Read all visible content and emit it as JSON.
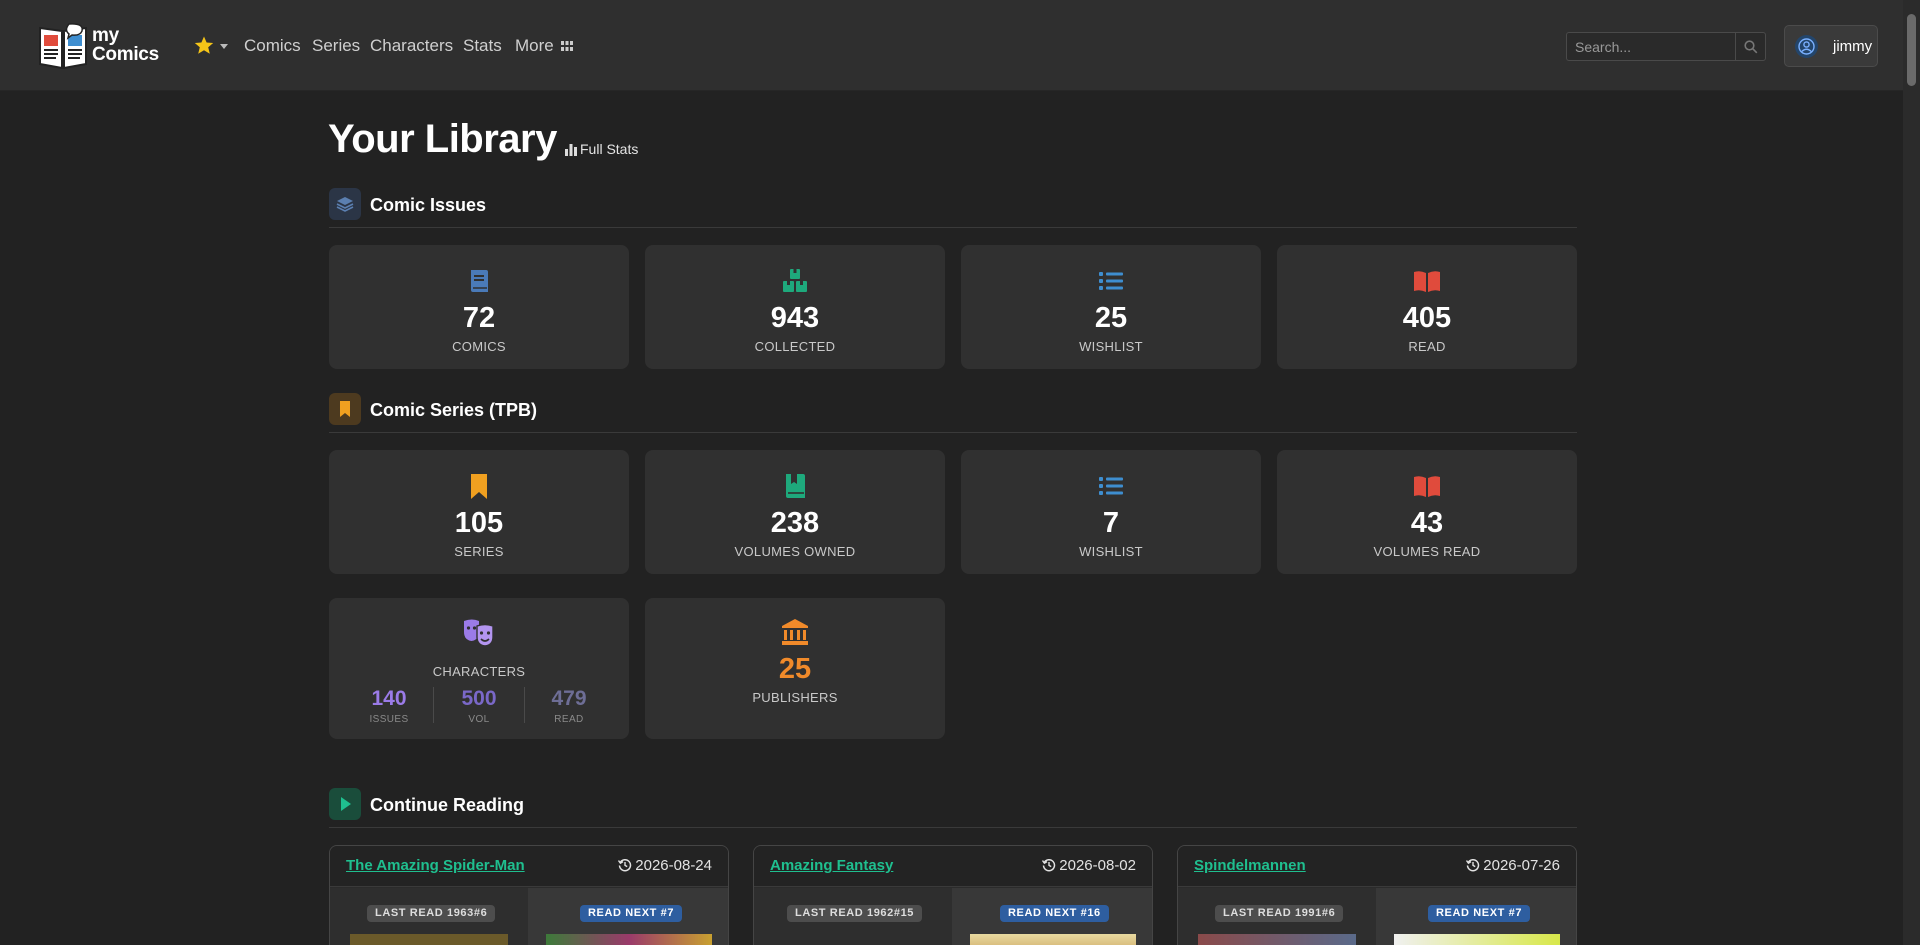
{
  "navbar": {
    "logo_line1": "my",
    "logo_line2": "Comics",
    "links": [
      "Comics",
      "Series",
      "Characters",
      "Stats",
      "More"
    ],
    "search_placeholder": "Search...",
    "user": "jimmy",
    "colors": {
      "star": "#f5c518",
      "bg": "#2f2f2f"
    },
    "icons": [
      "star-icon",
      "grid-icon",
      "search-icon",
      "user-circle-icon"
    ]
  },
  "page": {
    "title": "Your Library",
    "full_stats_label": "Full Stats"
  },
  "issues_section": {
    "title": "Comic Issues",
    "cards": [
      {
        "value": "72",
        "label": "COMICS",
        "icon": "book-icon",
        "color": "#4a7ab8"
      },
      {
        "value": "943",
        "label": "COLLECTED",
        "icon": "boxes-icon",
        "color": "#1ea97c"
      },
      {
        "value": "25",
        "label": "WISHLIST",
        "icon": "list-icon",
        "color": "#3e8ed0"
      },
      {
        "value": "405",
        "label": "READ",
        "icon": "open-book-icon",
        "color": "#e04b3c"
      }
    ]
  },
  "series_section": {
    "title": "Comic Series (TPB)",
    "cards": [
      {
        "value": "105",
        "label": "SERIES",
        "icon": "bookmark-icon",
        "color": "#f0a020"
      },
      {
        "value": "238",
        "label": "VOLUMES OWNED",
        "icon": "book-bookmark-icon",
        "color": "#1ea97c"
      },
      {
        "value": "7",
        "label": "WISHLIST",
        "icon": "list-icon",
        "color": "#3e8ed0"
      },
      {
        "value": "43",
        "label": "VOLUMES READ",
        "icon": "open-book-icon",
        "color": "#e04b3c"
      }
    ]
  },
  "characters": {
    "label": "CHARACTERS",
    "icon": "masks-icon",
    "color": "#9b7be8",
    "stats": [
      {
        "value": "140",
        "label": "ISSUES",
        "color": "#9b7be8"
      },
      {
        "value": "500",
        "label": "VOL",
        "color": "#7a68c8"
      },
      {
        "value": "479",
        "label": "READ",
        "color": "#6e6e96"
      }
    ]
  },
  "publishers": {
    "value": "25",
    "label": "PUBLISHERS",
    "icon": "bank-icon",
    "color": "#f08a2a"
  },
  "continue_section": {
    "title": "Continue Reading",
    "items": [
      {
        "title": "The Amazing Spider-Man",
        "date": "2026-08-24",
        "last_read": "LAST READ 1963#6",
        "read_next": "READ NEXT #7"
      },
      {
        "title": "Amazing Fantasy",
        "date": "2026-08-02",
        "last_read": "LAST READ 1962#15",
        "read_next": "READ NEXT #16"
      },
      {
        "title": "Spindelmannen",
        "date": "2026-07-26",
        "last_read": "LAST READ 1991#6",
        "read_next": "READ NEXT #7"
      }
    ]
  }
}
